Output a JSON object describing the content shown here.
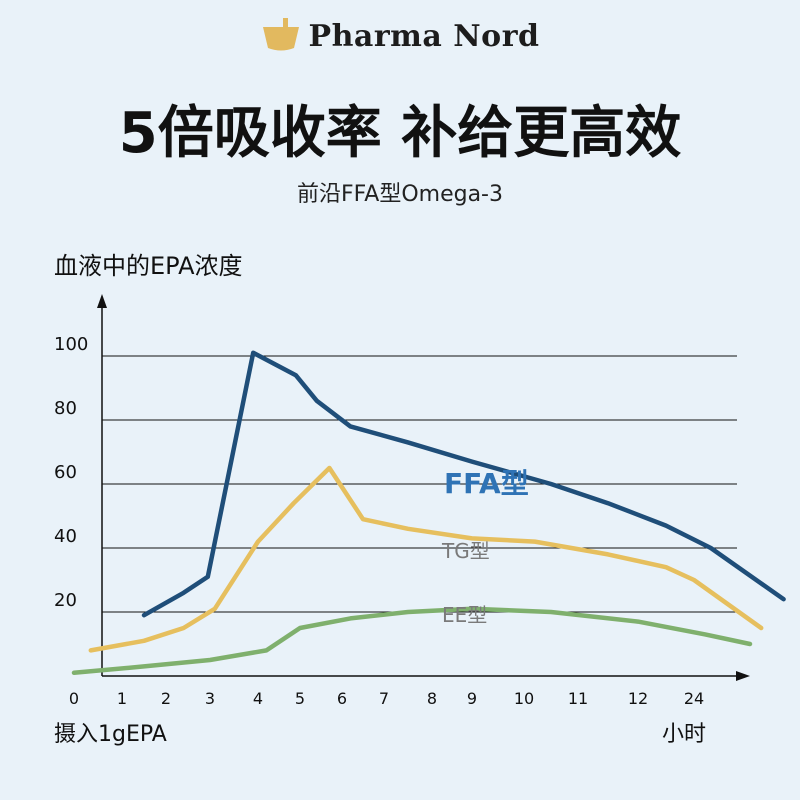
{
  "brand": {
    "name": "Pharma Nord",
    "logo_icon": "mortar-pestle-icon",
    "logo_color": "#e2b95f"
  },
  "header": {
    "title": "5倍吸收率 补给更高效",
    "subtitle": "前沿FFA型Omega-3"
  },
  "colors": {
    "ffa": "#1f4e79",
    "tg": "#e6bf5e",
    "ee": "#7fb06d",
    "ffa_label": "#2f73b5",
    "other_label": "#7a7a7a",
    "axis": "#111111",
    "grid": "#111111"
  },
  "chart_data": {
    "type": "line",
    "ylabel": "血液中的EPA浓度",
    "xlabel_left": "摄入1gEPA",
    "xlabel_right": "小时",
    "x_ticks": [
      "0",
      "1",
      "2",
      "3",
      "4",
      "5",
      "6",
      "7",
      "8",
      "9",
      "10",
      "11",
      "12",
      "24"
    ],
    "y_ticks": [
      20,
      40,
      60,
      80,
      100
    ],
    "ylim": [
      0,
      110
    ],
    "grid": "horizontal",
    "series": [
      {
        "name": "FFA型",
        "points": [
          [
            1.5,
            19
          ],
          [
            2.4,
            26
          ],
          [
            2.95,
            31
          ],
          [
            3.9,
            101
          ],
          [
            4.9,
            94
          ],
          [
            5.4,
            86
          ],
          [
            6.2,
            78
          ],
          [
            7.5,
            73
          ],
          [
            9.0,
            67
          ],
          [
            10.5,
            60
          ],
          [
            11.5,
            54
          ],
          [
            12.5,
            47
          ],
          [
            13.3,
            40
          ],
          [
            14.6,
            24
          ]
        ]
      },
      {
        "name": "TG型",
        "points": [
          [
            0.35,
            8
          ],
          [
            1.5,
            11
          ],
          [
            2.4,
            15
          ],
          [
            3.1,
            21
          ],
          [
            4.0,
            42
          ],
          [
            4.85,
            54
          ],
          [
            5.7,
            65
          ],
          [
            6.5,
            49
          ],
          [
            7.5,
            46
          ],
          [
            9.0,
            43
          ],
          [
            10.2,
            42
          ],
          [
            11.5,
            38
          ],
          [
            12.5,
            34
          ],
          [
            13.0,
            30
          ],
          [
            14.2,
            15
          ]
        ]
      },
      {
        "name": "EE型",
        "points": [
          [
            0.0,
            1
          ],
          [
            1.5,
            3
          ],
          [
            3.0,
            5
          ],
          [
            4.2,
            8
          ],
          [
            5.0,
            15
          ],
          [
            6.2,
            18
          ],
          [
            7.5,
            20
          ],
          [
            9.0,
            21
          ],
          [
            10.5,
            20
          ],
          [
            12.0,
            17
          ],
          [
            13.2,
            13
          ],
          [
            14.0,
            10
          ]
        ]
      }
    ]
  }
}
